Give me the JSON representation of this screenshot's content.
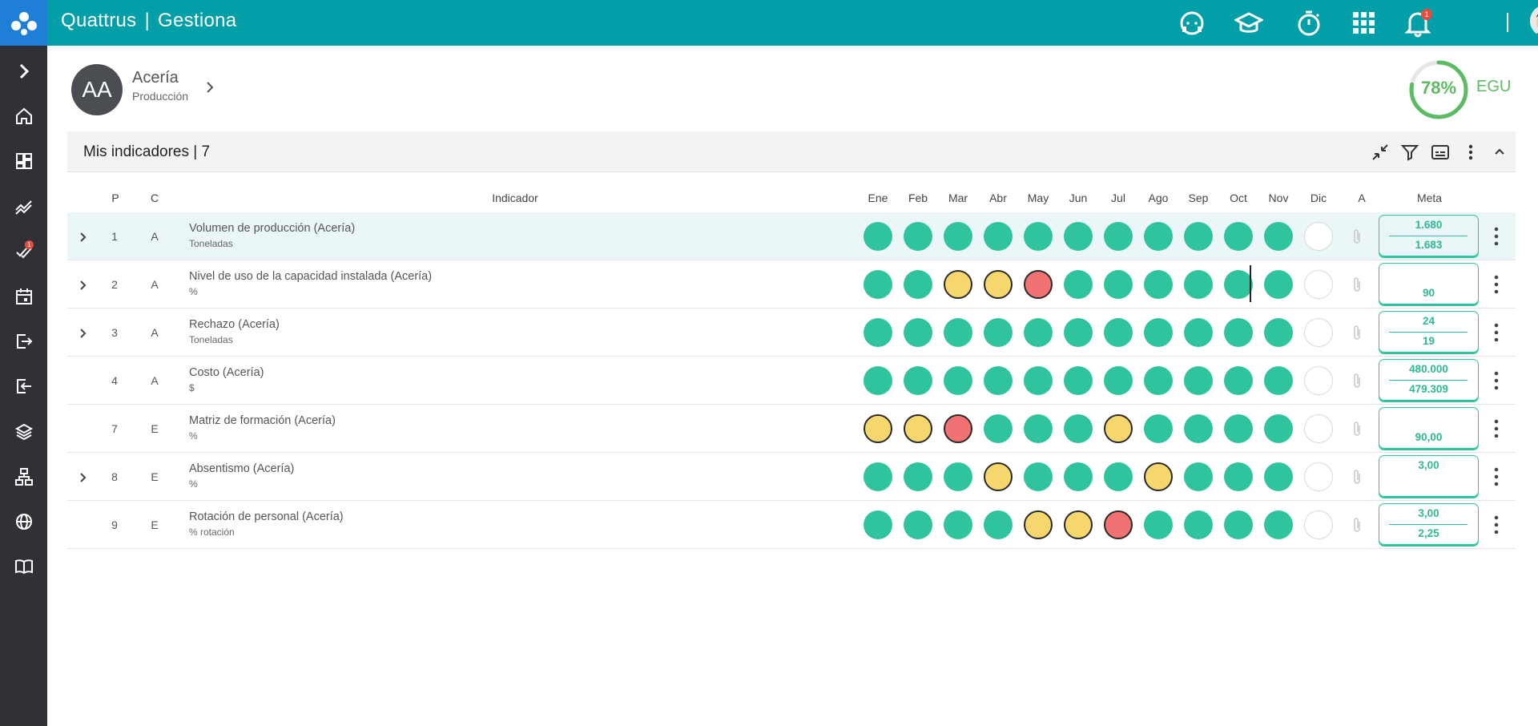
{
  "app": {
    "brand_left": "Quattrus",
    "brand_sep": "|",
    "brand_right": "Gestiona",
    "notifications_count": "1",
    "rail_badge": "1"
  },
  "unit": {
    "initials": "AA",
    "name": "Acería",
    "area": "Producción"
  },
  "egu": {
    "percent": "78%",
    "percent_value": 0.78,
    "label": "EGU"
  },
  "panel": {
    "title": "Mis indicadores | 7"
  },
  "table": {
    "headers": {
      "p": "P",
      "c": "C",
      "indicador": "Indicador",
      "a": "A",
      "meta": "Meta"
    },
    "months": [
      "Ene",
      "Feb",
      "Mar",
      "Abr",
      "May",
      "Jun",
      "Jul",
      "Ago",
      "Sep",
      "Oct",
      "Nov",
      "Dic"
    ],
    "rows": [
      {
        "expandable": true,
        "p": "1",
        "c": "A",
        "name": "Volumen de producción (Acería)",
        "unit": "Toneladas",
        "status": [
          "g",
          "g",
          "g",
          "g",
          "g",
          "g",
          "g",
          "g",
          "g",
          "g",
          "g",
          "e"
        ],
        "meta_top": "1.680",
        "meta_bottom": "1.683"
      },
      {
        "expandable": true,
        "p": "2",
        "c": "A",
        "name": "Nivel de uso de la capacidad instalada (Acería)",
        "unit": "%",
        "status": [
          "g",
          "g",
          "y",
          "y",
          "r",
          "g",
          "g",
          "g",
          "g",
          "g",
          "g",
          "e"
        ],
        "meta_top": "",
        "meta_bottom": "90"
      },
      {
        "expandable": true,
        "p": "3",
        "c": "A",
        "name": "Rechazo (Acería)",
        "unit": "Toneladas",
        "status": [
          "g",
          "g",
          "g",
          "g",
          "g",
          "g",
          "g",
          "g",
          "g",
          "g",
          "g",
          "e"
        ],
        "meta_top": "24",
        "meta_bottom": "19"
      },
      {
        "expandable": false,
        "p": "4",
        "c": "A",
        "name": "Costo (Acería)",
        "unit": "$",
        "status": [
          "g",
          "g",
          "g",
          "g",
          "g",
          "g",
          "g",
          "g",
          "g",
          "g",
          "g",
          "e"
        ],
        "meta_top": "480.000",
        "meta_bottom": "479.309"
      },
      {
        "expandable": false,
        "p": "7",
        "c": "E",
        "name": "Matriz de formación (Acería)",
        "unit": "%",
        "status": [
          "y",
          "y",
          "r",
          "g",
          "g",
          "g",
          "y",
          "g",
          "g",
          "g",
          "g",
          "e"
        ],
        "meta_top": "",
        "meta_bottom": "90,00"
      },
      {
        "expandable": true,
        "p": "8",
        "c": "E",
        "name": "Absentismo (Acería)",
        "unit": "%",
        "status": [
          "g",
          "g",
          "g",
          "y",
          "g",
          "g",
          "g",
          "y",
          "g",
          "g",
          "g",
          "e"
        ],
        "meta_top": "3,00",
        "meta_bottom": ""
      },
      {
        "expandable": false,
        "p": "9",
        "c": "E",
        "name": "Rotación de personal (Acería)",
        "unit": "% rotación",
        "status": [
          "g",
          "g",
          "g",
          "g",
          "y",
          "y",
          "r",
          "g",
          "g",
          "g",
          "g",
          "e"
        ],
        "meta_top": "3,00",
        "meta_bottom": "2,25"
      }
    ]
  },
  "colors": {
    "topbar": "#029fa8",
    "rail": "#2f3136",
    "logo_bg": "#1f7fd6",
    "status_green": "#2fc49e",
    "status_yellow": "#f5d76e",
    "status_red": "#f07272",
    "egu_green": "#5cbb63"
  },
  "icons": {
    "rail": [
      "expand-icon",
      "home-icon",
      "dashboard-icon",
      "trend-icon",
      "tasks-icon",
      "calendar-icon",
      "import-icon",
      "export-icon",
      "layers-icon",
      "org-chart-icon",
      "globe-icon",
      "manual-icon"
    ],
    "topbar": [
      "support-agent-icon",
      "graduation-cap-icon",
      "stopwatch-icon",
      "apps-grid-icon",
      "bell-icon"
    ],
    "panel": [
      "collapse-arrows-icon",
      "filter-icon",
      "caption-icon",
      "more-vert-icon",
      "chevron-up-icon"
    ]
  }
}
